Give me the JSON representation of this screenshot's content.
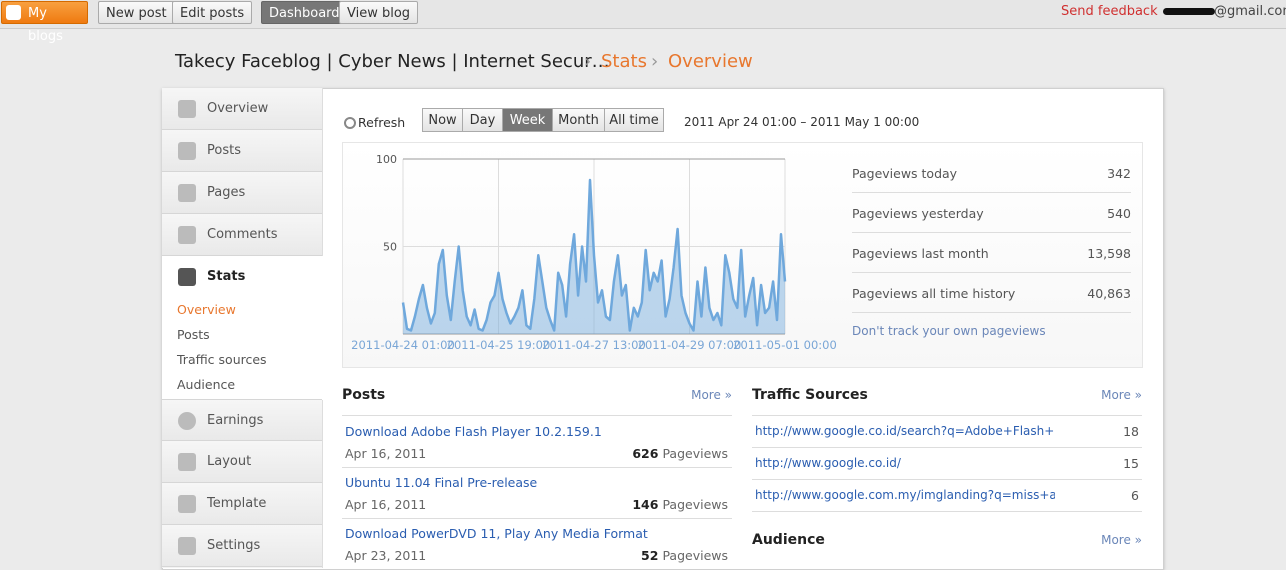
{
  "topbar": {
    "my_blogs": "My blogs",
    "new_post": "New post",
    "edit_posts": "Edit posts",
    "dashboard": "Dashboard",
    "view_blog": "View blog",
    "send_feedback": "Send feedback",
    "email_domain": "@gmail.com"
  },
  "breadcrumb": {
    "blog": "Takecy Faceblog | Cyber News | Internet Secur…",
    "separator": "›",
    "stats": "Stats",
    "overview": "Overview"
  },
  "sidebar": {
    "items_top": [
      "Overview",
      "Posts",
      "Pages",
      "Comments"
    ],
    "selected": "Stats",
    "sub_items": [
      "Overview",
      "Posts",
      "Traffic sources",
      "Audience"
    ],
    "items_bottom": [
      "Earnings",
      "Layout",
      "Template",
      "Settings"
    ]
  },
  "toolbar": {
    "refresh": "Refresh",
    "ranges": [
      "Now",
      "Day",
      "Week",
      "Month",
      "All time"
    ],
    "selected_range": 2,
    "date_range": "2011 Apr 24 01:00 – 2011 May 1 00:00"
  },
  "chart": {
    "type": "area",
    "color": "#6fa8dc",
    "ylim": [
      0,
      100
    ],
    "yticks": [
      50,
      100
    ],
    "xtick_labels": [
      "2011-04-24 01:00",
      "2011-04-25 19:00",
      "2011-04-27 13:00",
      "2011-04-29 07:00",
      "2011-05-01 00:00"
    ],
    "values": [
      18,
      3,
      2,
      10,
      20,
      28,
      15,
      6,
      12,
      40,
      48,
      22,
      8,
      30,
      50,
      25,
      10,
      5,
      14,
      3,
      2,
      8,
      18,
      22,
      35,
      20,
      12,
      6,
      10,
      15,
      25,
      5,
      3,
      20,
      45,
      30,
      15,
      8,
      2,
      35,
      28,
      10,
      40,
      57,
      22,
      50,
      30,
      88,
      45,
      18,
      25,
      10,
      8,
      30,
      45,
      22,
      28,
      2,
      15,
      10,
      18,
      48,
      25,
      35,
      30,
      42,
      10,
      20,
      38,
      60,
      22,
      12,
      6,
      2,
      30,
      10,
      38,
      15,
      8,
      12,
      5,
      45,
      35,
      20,
      15,
      48,
      10,
      22,
      32,
      5,
      28,
      12,
      15,
      30,
      8,
      57,
      30
    ]
  },
  "summary": {
    "rows": [
      {
        "label": "Pageviews today",
        "value": "342"
      },
      {
        "label": "Pageviews yesterday",
        "value": "540"
      },
      {
        "label": "Pageviews last month",
        "value": "13,598"
      },
      {
        "label": "Pageviews all time history",
        "value": "40,863"
      }
    ],
    "link": "Don't track your own pageviews"
  },
  "posts": {
    "title": "Posts",
    "more": "More »",
    "items": [
      {
        "title": "Download Adobe Flash Player 10.2.159.1",
        "date": "Apr 16, 2011",
        "count": "626",
        "unit": "Pageviews"
      },
      {
        "title": "Ubuntu 11.04 Final Pre-release",
        "date": "Apr 16, 2011",
        "count": "146",
        "unit": "Pageviews"
      },
      {
        "title": "Download PowerDVD 11, Play Any Media Format",
        "date": "Apr 23, 2011",
        "count": "52",
        "unit": "Pageviews"
      }
    ]
  },
  "traffic_sources": {
    "title": "Traffic Sources",
    "more": "More »",
    "rows": [
      {
        "url": "http://www.google.co.id/search?q=Adobe+Flash+Player",
        "count": "18"
      },
      {
        "url": "http://www.google.co.id/",
        "count": "15"
      },
      {
        "url": "http://www.google.com.my/imglanding?q=miss+anonymous",
        "count": "6"
      }
    ]
  },
  "audience": {
    "title": "Audience",
    "more": "More »"
  }
}
